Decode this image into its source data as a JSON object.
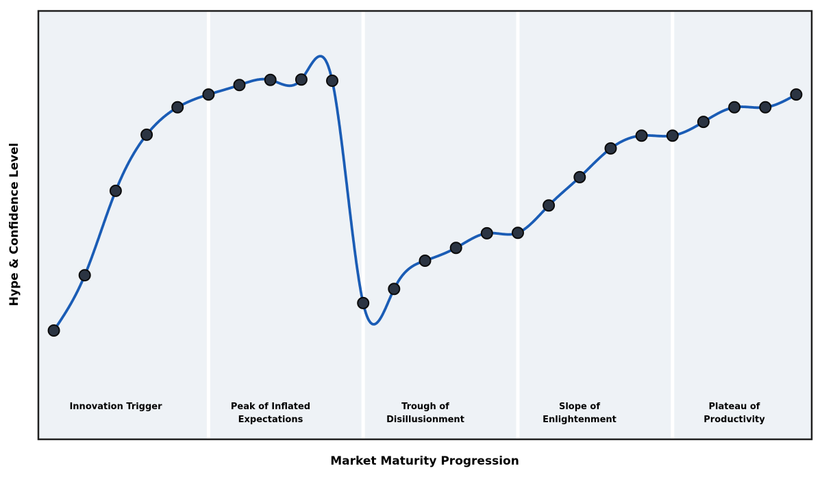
{
  "chart_data": {
    "type": "line",
    "xlabel": "Market Maturity Progression",
    "ylabel": "Hype & Confidence Level",
    "x": [
      0,
      1,
      2,
      3,
      4,
      5,
      6,
      7,
      8,
      9,
      10,
      11,
      12,
      13,
      14,
      15,
      16,
      17,
      18,
      19,
      20,
      21,
      22,
      23,
      24
    ],
    "y": [
      25.4,
      38.3,
      58.0,
      71.1,
      77.5,
      80.5,
      82.7,
      83.9,
      84.0,
      83.7,
      31.8,
      35.1,
      41.7,
      44.7,
      48.1,
      48.2,
      54.6,
      61.2,
      67.9,
      70.9,
      70.9,
      74.1,
      77.5,
      77.5,
      80.5
    ],
    "xlim": [
      -0.5,
      24.5
    ],
    "ylim": [
      0,
      100
    ],
    "grid": false,
    "legend": false,
    "curve_style": "smooth-cubic-spline-through-points",
    "tick_labels": "none",
    "phase_boundaries_x": [
      5,
      10,
      15,
      20
    ],
    "phases": [
      {
        "label": "Innovation Trigger",
        "center_x": 2
      },
      {
        "label": "Peak of Inflated\nExpectations",
        "center_x": 7
      },
      {
        "label": "Trough of\nDisillusionment",
        "center_x": 12
      },
      {
        "label": "Slope of\nEnlightenment",
        "center_x": 17
      },
      {
        "label": "Plateau of\nProductivity",
        "center_x": 22
      }
    ]
  },
  "style": {
    "line_color": "#1a5cb5",
    "marker_fill": "#2b3442",
    "marker_edge": "#0a0a0a",
    "band_fill": "#eef2f6",
    "divider_color": "#ffffff",
    "axes_border_color": "#1f1f1f",
    "figure_background": "#ffffff",
    "label_color": "#000000"
  }
}
